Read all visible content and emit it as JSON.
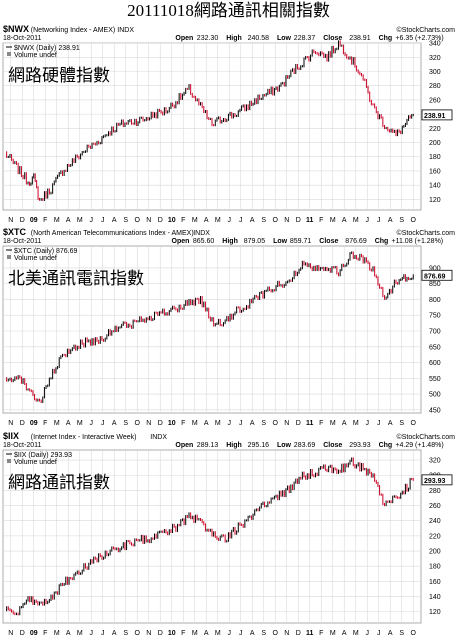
{
  "page": {
    "title": "20111018網路通訊相關指數"
  },
  "colors": {
    "up": "#000000",
    "down": "#cc0022",
    "grid": "#d9d9d9",
    "frame": "#999999"
  },
  "chart_data": [
    {
      "type": "line",
      "symbol": "$NWX",
      "name": "(Networking Index - AMEX)",
      "exchange": "INDX",
      "date": "18-Oct-2011",
      "ohlc": {
        "open_label": "Open",
        "open": "232.30",
        "high_label": "High",
        "high": "240.58",
        "low_label": "Low",
        "low": "228.37",
        "close_label": "Close",
        "close": "238.91",
        "chg_label": "Chg",
        "chg": "+6.35 (+2.73%)"
      },
      "legend_price": "$NWX (Daily) 238.91",
      "legend_volume": "Volume undef",
      "watermark": "©StockCharts.com",
      "overlay": "網路硬體指數",
      "last_value": "238.91",
      "last": 238.91,
      "ylim": [
        105,
        350
      ],
      "yticks": [
        120,
        140,
        160,
        180,
        200,
        220,
        240,
        260,
        280,
        300,
        320,
        340
      ],
      "x_months": [
        "N",
        "D",
        "09",
        "F",
        "M",
        "A",
        "M",
        "J",
        "J",
        "A",
        "S",
        "O",
        "N",
        "D",
        "10",
        "F",
        "M",
        "A",
        "M",
        "J",
        "J",
        "A",
        "S",
        "O",
        "N",
        "D",
        "11",
        "F",
        "M",
        "A",
        "M",
        "J",
        "J",
        "A",
        "S",
        "O"
      ],
      "bold_months": [
        "09",
        "10",
        "11"
      ],
      "x": [
        0,
        1,
        2,
        2.5,
        3,
        4,
        5,
        6,
        7,
        8,
        9,
        10,
        11,
        12,
        13,
        14,
        15,
        16,
        17,
        18,
        19,
        20,
        21,
        22,
        23,
        24,
        25,
        26,
        27,
        28,
        29,
        30,
        31,
        32,
        33,
        34,
        35.5
      ],
      "values": [
        185,
        165,
        145,
        150,
        118,
        135,
        160,
        175,
        190,
        200,
        215,
        225,
        230,
        232,
        240,
        245,
        260,
        275,
        250,
        225,
        235,
        240,
        250,
        262,
        270,
        280,
        300,
        315,
        330,
        320,
        340,
        320,
        295,
        250,
        225,
        210,
        238.91
      ]
    },
    {
      "type": "line",
      "symbol": "$XTC",
      "name": "(North American Telecommunications Index - AMEX)",
      "exchange": "INDX",
      "date": "18-Oct-2011",
      "ohlc": {
        "open_label": "Open",
        "open": "865.60",
        "high_label": "High",
        "high": "879.05",
        "low_label": "Low",
        "low": "859.71",
        "close_label": "Close",
        "close": "876.69",
        "chg_label": "Chg",
        "chg": "+11.08 (+1.28%)"
      },
      "legend_price": "$XTC (Daily) 876.69",
      "legend_volume": "Volume undef",
      "watermark": "©StockCharts.com",
      "overlay": "北美通訊電訊指數",
      "last_value": "876.69",
      "last": 876.69,
      "ylim": [
        440,
        960
      ],
      "yticks": [
        450,
        500,
        550,
        600,
        650,
        700,
        750,
        800,
        850,
        900
      ],
      "x_months": [
        "N",
        "D",
        "09",
        "F",
        "M",
        "A",
        "M",
        "J",
        "J",
        "A",
        "S",
        "O",
        "N",
        "D",
        "10",
        "F",
        "M",
        "A",
        "M",
        "J",
        "J",
        "A",
        "S",
        "O",
        "N",
        "D",
        "11",
        "F",
        "M",
        "A",
        "M",
        "J",
        "J",
        "A",
        "S",
        "O"
      ],
      "bold_months": [
        "09",
        "10",
        "11"
      ],
      "x": [
        0,
        1,
        2,
        3,
        4,
        5,
        6,
        7,
        8,
        9,
        10,
        11,
        12,
        13,
        14,
        15,
        16,
        17,
        18,
        19,
        20,
        21,
        22,
        23,
        24,
        25,
        26,
        27,
        28,
        29,
        30,
        31,
        32,
        33,
        34,
        35.5
      ],
      "values": [
        540,
        560,
        520,
        470,
        555,
        620,
        650,
        665,
        670,
        690,
        715,
        720,
        740,
        750,
        760,
        770,
        790,
        800,
        730,
        720,
        760,
        780,
        810,
        830,
        850,
        870,
        920,
        900,
        905,
        885,
        940,
        930,
        895,
        800,
        860,
        876.69
      ]
    },
    {
      "type": "line",
      "symbol": "$IIX",
      "name": "(Internet Index - Interactive Week)",
      "exchange": "INDX",
      "date": "18-Oct-2011",
      "ohlc": {
        "open_label": "Open",
        "open": "289.13",
        "high_label": "High",
        "high": "295.16",
        "low_label": "Low",
        "low": "283.69",
        "close_label": "Close",
        "close": "293.93",
        "chg_label": "Chg",
        "chg": "+4.29 (+1.48%)"
      },
      "legend_price": "$IIX (Daily) 293.93",
      "legend_volume": "Volume undef",
      "watermark": "©StockCharts.com",
      "overlay": "網路通訊指數",
      "last_value": "293.93",
      "last": 293.93,
      "ylim": [
        105,
        332
      ],
      "yticks": [
        120,
        140,
        160,
        180,
        200,
        220,
        240,
        260,
        280,
        300,
        320
      ],
      "x_months": [
        "N",
        "D",
        "09",
        "F",
        "M",
        "A",
        "M",
        "J",
        "J",
        "A",
        "S",
        "O",
        "N",
        "D",
        "10",
        "F",
        "M",
        "A",
        "M",
        "J",
        "J",
        "A",
        "S",
        "O",
        "N",
        "D",
        "11",
        "F",
        "M",
        "A",
        "M",
        "J",
        "J",
        "A",
        "S",
        "O"
      ],
      "bold_months": [
        "09",
        "10",
        "11"
      ],
      "x": [
        0,
        1,
        2,
        3,
        4,
        5,
        6,
        7,
        8,
        9,
        10,
        11,
        12,
        13,
        14,
        15,
        16,
        17,
        18,
        19,
        20,
        21,
        22,
        23,
        24,
        25,
        26,
        27,
        28,
        29,
        30,
        31,
        32,
        33,
        34,
        35.5
      ],
      "values": [
        125,
        115,
        135,
        130,
        140,
        155,
        170,
        180,
        190,
        200,
        205,
        210,
        215,
        218,
        225,
        232,
        245,
        238,
        225,
        215,
        228,
        240,
        255,
        265,
        275,
        285,
        300,
        305,
        310,
        305,
        318,
        310,
        300,
        260,
        270,
        293.93
      ]
    }
  ]
}
